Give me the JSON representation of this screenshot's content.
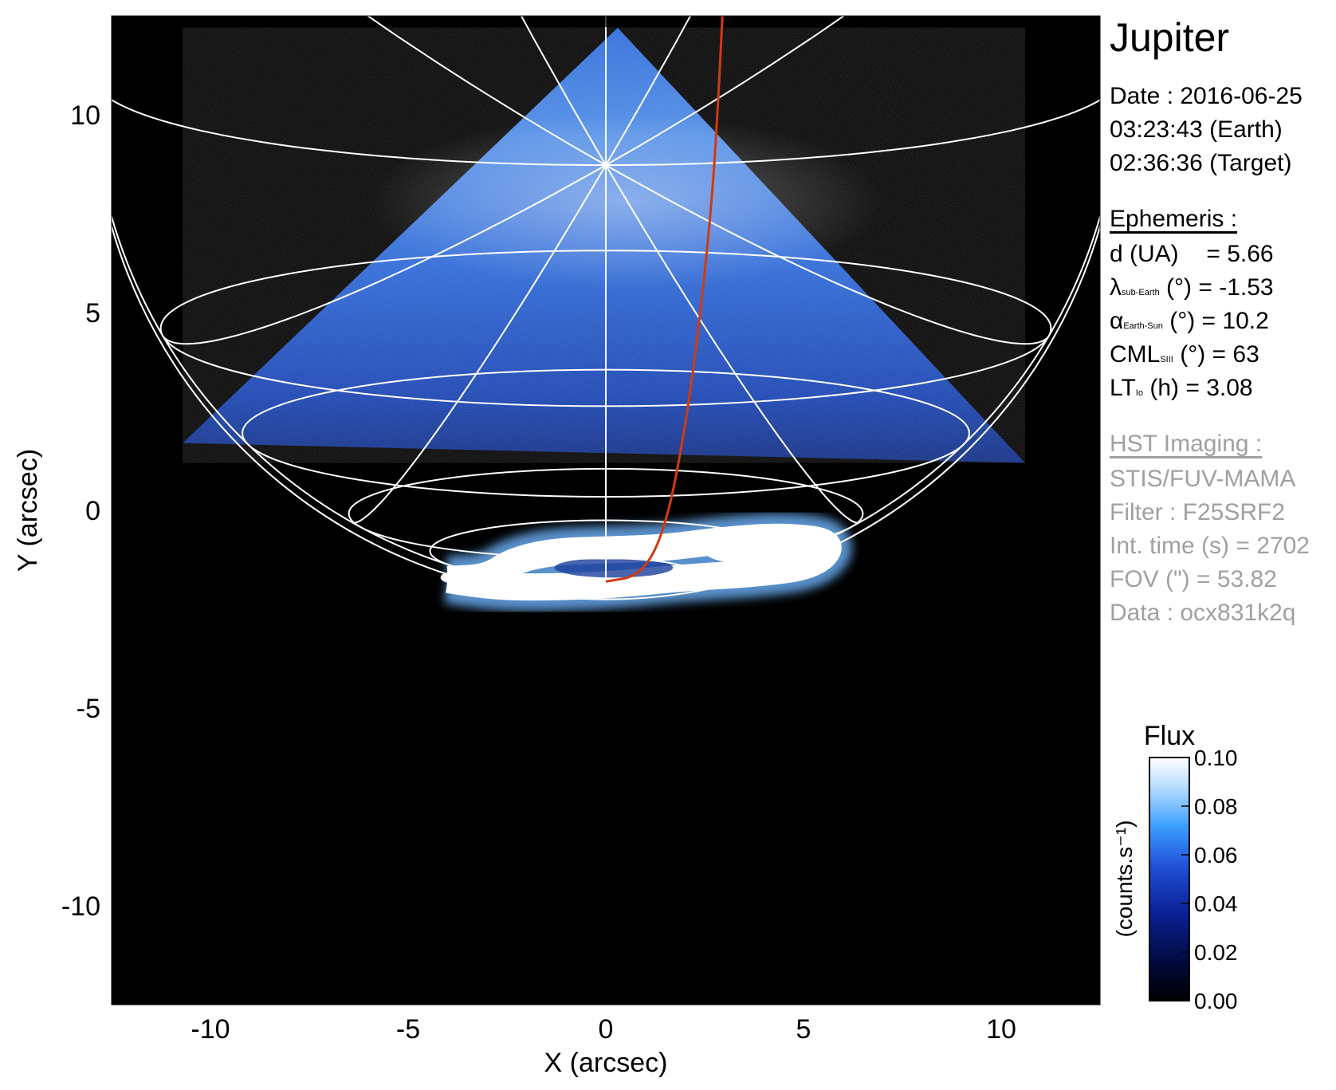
{
  "planet": "Jupiter",
  "observation": {
    "date_line": "Date : 2016-06-25",
    "earth_time": "03:23:43 (Earth)",
    "target_time": "02:36:36 (Target)"
  },
  "ephemeris": {
    "header": "Ephemeris :",
    "distance": {
      "label": "d (UA)",
      "value": "= 5.66"
    },
    "sub_earth_lat": {
      "symbol": "λ",
      "sub": "sub-Earth",
      "unit": "(°)",
      "value": "= -1.53"
    },
    "phase_angle": {
      "symbol": "α",
      "sub": "Earth-Sun",
      "unit": "(°)",
      "value": "= 10.2"
    },
    "cml": {
      "symbol": "CML",
      "sub": "SIII",
      "unit": "(°)",
      "value": "= 63"
    },
    "local_time": {
      "symbol": "LT",
      "sub": "Io",
      "unit": "(h)",
      "value": "= 3.08"
    }
  },
  "hst": {
    "header": "HST Imaging :",
    "instrument": "STIS/FUV-MAMA",
    "filter": "Filter : F25SRF2",
    "int_time": "Int. time (s) = 2702",
    "fov": "FOV (\") = 53.82",
    "data": "Data : ocx831k2q"
  },
  "colors": {
    "background": "#000000",
    "grid": "#ffffff",
    "footprint": "#d23a10",
    "image_blue": "#1f5fd0"
  },
  "chart_data": {
    "type": "heatmap",
    "xlabel": "X (arcsec)",
    "ylabel": "Y (arcsec)",
    "xlim": [
      -12.5,
      12.5
    ],
    "ylim": [
      -12.5,
      12.5
    ],
    "xticks": [
      -10,
      -5,
      0,
      5,
      10
    ],
    "yticks": [
      -10,
      -5,
      0,
      5,
      10
    ],
    "colorbar": {
      "title": "Flux",
      "label": "(counts.s⁻¹)",
      "range": [
        0.0,
        0.1
      ],
      "ticks": [
        "0.00",
        "0.02",
        "0.04",
        "0.06",
        "0.08",
        "0.10"
      ],
      "colormap": [
        "#000000",
        "#000a3a",
        "#0a1f90",
        "#1f4fd6",
        "#3ea0ff",
        "#b8ddff",
        "#ffffff"
      ]
    },
    "grid": true,
    "disk_center": [
      0.0,
      11.0
    ],
    "disk_radius": 13.0,
    "latitude_lines": [
      30,
      45,
      60,
      70,
      80
    ],
    "longitude_lines": [
      0,
      30,
      60,
      90,
      120,
      150,
      180,
      210,
      240,
      270,
      300,
      330
    ],
    "north_pole": [
      0.0,
      -1.8
    ],
    "auroral_oval": [
      [
        -4.0,
        -1.75
      ],
      [
        -3.0,
        -1.7
      ],
      [
        -2.4,
        -1.3
      ],
      [
        -1.4,
        -1.05
      ],
      [
        0.0,
        -1.0
      ],
      [
        1.5,
        -0.95
      ],
      [
        3.0,
        -0.75
      ],
      [
        4.5,
        -0.65
      ],
      [
        5.8,
        -0.8
      ],
      [
        5.3,
        -1.4
      ],
      [
        3.8,
        -1.6
      ],
      [
        2.0,
        -1.7
      ],
      [
        0.0,
        -1.9
      ],
      [
        -2.0,
        -1.95
      ],
      [
        -3.0,
        -1.9
      ]
    ],
    "io_footprint": [
      [
        0.0,
        -1.8
      ],
      [
        0.9,
        -1.65
      ],
      [
        1.5,
        -0.5
      ],
      [
        2.0,
        2.0
      ],
      [
        2.4,
        5.0
      ],
      [
        2.7,
        8.0
      ],
      [
        2.85,
        10.5
      ],
      [
        2.95,
        12.5
      ]
    ],
    "coverage_triangle": [
      [
        -10.7,
        1.7
      ],
      [
        0.3,
        12.2
      ],
      [
        10.6,
        1.2
      ]
    ]
  }
}
